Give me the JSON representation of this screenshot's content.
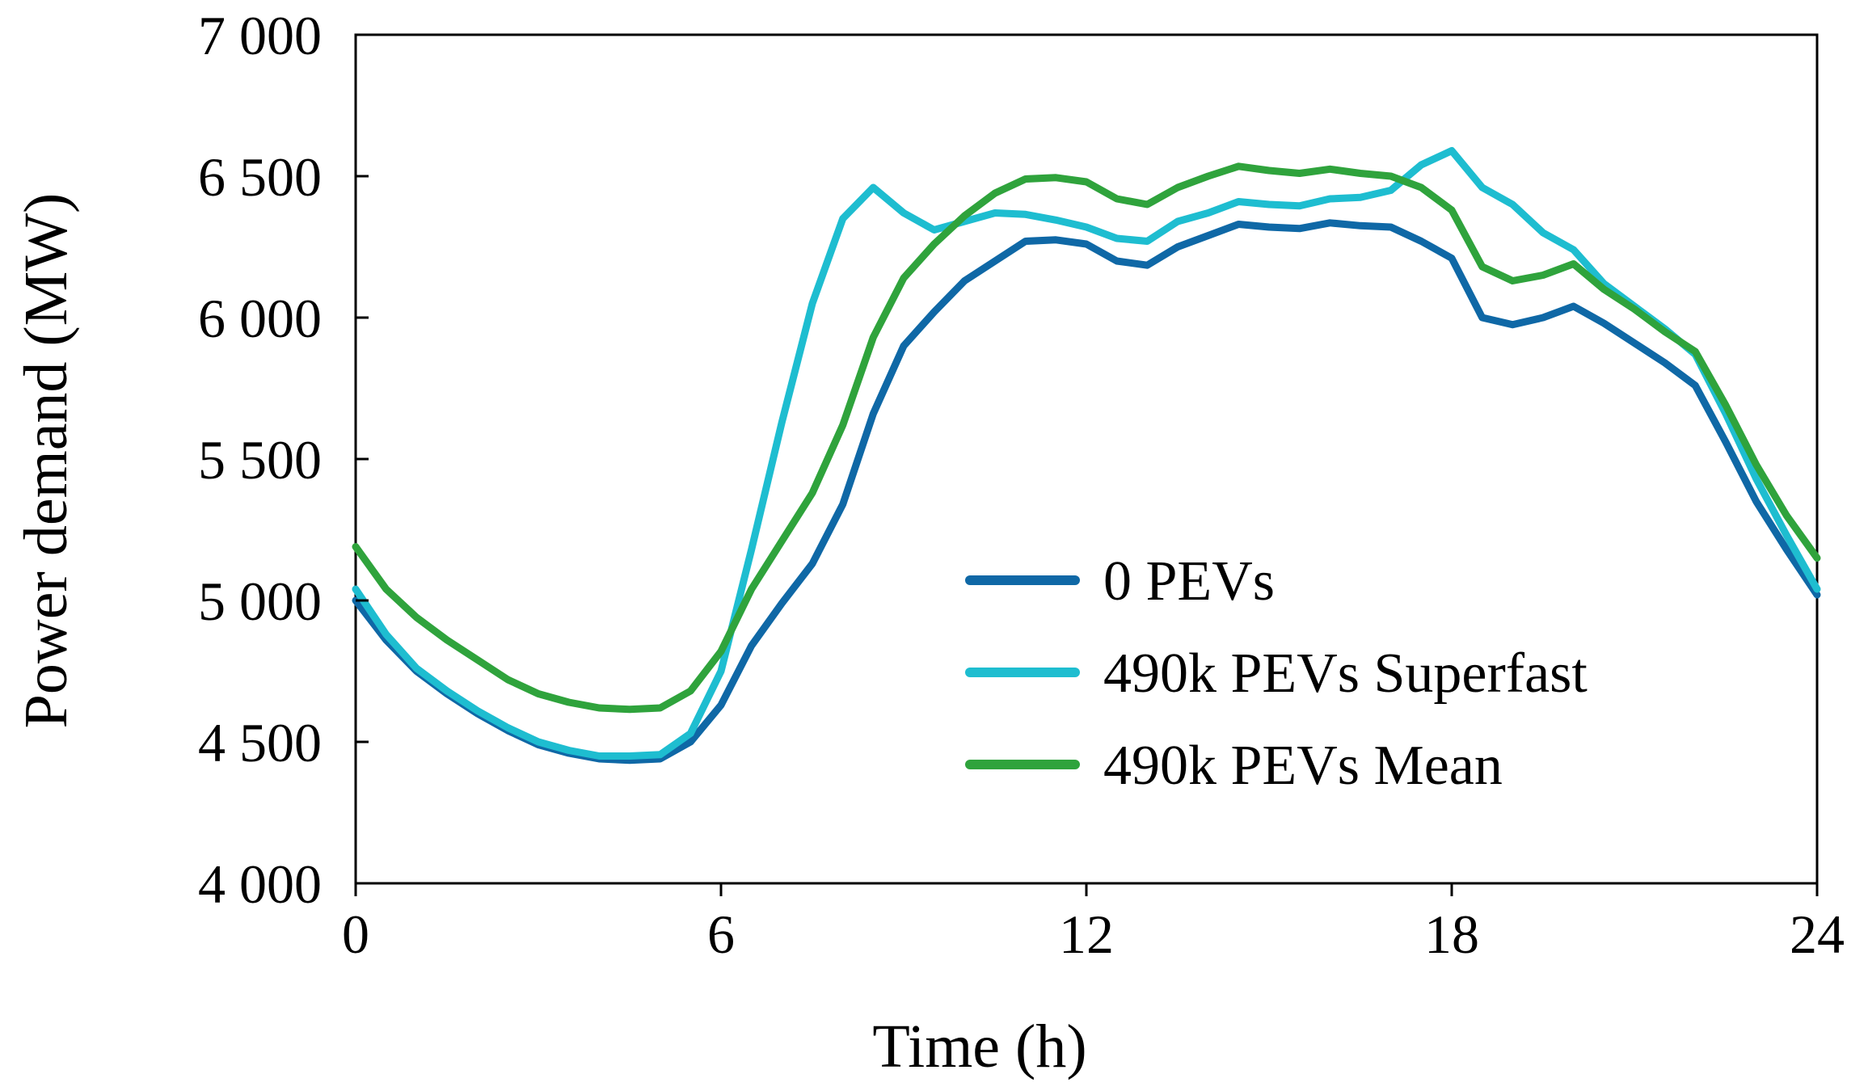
{
  "chart_data": {
    "type": "line",
    "title": "",
    "xlabel": "Time (h)",
    "ylabel": "Power demand (MW)",
    "xlim": [
      0,
      24
    ],
    "ylim": [
      4000,
      7000
    ],
    "xticks": [
      0,
      6,
      12,
      18,
      24
    ],
    "xtick_labels": [
      "0",
      "6",
      "12",
      "18",
      "24"
    ],
    "yticks": [
      4000,
      4500,
      5000,
      5500,
      6000,
      6500,
      7000
    ],
    "ytick_labels": [
      "4 000",
      "4 500",
      "5 000",
      "5 500",
      "6 000",
      "6 500",
      "7 000"
    ],
    "grid": false,
    "legend_position": "lower-right",
    "series": [
      {
        "name": "0 PEVs",
        "color": "#0f68a6",
        "x": [
          0,
          0.5,
          1,
          1.5,
          2,
          2.5,
          3,
          3.5,
          4,
          4.5,
          5,
          5.5,
          6,
          6.5,
          7,
          7.5,
          8,
          8.5,
          9,
          9.5,
          10,
          10.5,
          11,
          11.5,
          12,
          12.5,
          13,
          13.5,
          14,
          14.5,
          15,
          15.5,
          16,
          16.5,
          17,
          17.5,
          18,
          18.5,
          19,
          19.5,
          20,
          20.5,
          21,
          21.5,
          22,
          22.5,
          23,
          23.5,
          24
        ],
        "values": [
          5000,
          4860,
          4750,
          4670,
          4600,
          4540,
          4490,
          4460,
          4440,
          4435,
          4440,
          4500,
          4630,
          4840,
          4990,
          5130,
          5340,
          5660,
          5900,
          6020,
          6130,
          6200,
          6270,
          6275,
          6260,
          6200,
          6185,
          6250,
          6290,
          6330,
          6320,
          6315,
          6335,
          6325,
          6320,
          6270,
          6210,
          6000,
          5975,
          6000,
          6040,
          5980,
          5910,
          5840,
          5760,
          5560,
          5350,
          5180,
          5020
        ]
      },
      {
        "name": "490k PEVs Superfast",
        "color": "#1ebdd0",
        "x": [
          0,
          0.5,
          1,
          1.5,
          2,
          2.5,
          3,
          3.5,
          4,
          4.5,
          5,
          5.5,
          6,
          6.5,
          7,
          7.5,
          8,
          8.5,
          9,
          9.5,
          10,
          10.5,
          11,
          11.5,
          12,
          12.5,
          13,
          13.5,
          14,
          14.5,
          15,
          15.5,
          16,
          16.5,
          17,
          17.5,
          18,
          18.5,
          19,
          19.5,
          20,
          20.5,
          21,
          21.5,
          22,
          22.5,
          23,
          23.5,
          24
        ],
        "values": [
          5040,
          4880,
          4760,
          4680,
          4610,
          4550,
          4500,
          4470,
          4450,
          4450,
          4455,
          4530,
          4750,
          5180,
          5630,
          6050,
          6350,
          6460,
          6370,
          6310,
          6340,
          6370,
          6365,
          6345,
          6320,
          6280,
          6270,
          6340,
          6370,
          6410,
          6400,
          6395,
          6420,
          6425,
          6450,
          6540,
          6590,
          6460,
          6400,
          6300,
          6240,
          6120,
          6040,
          5960,
          5870,
          5660,
          5430,
          5230,
          5040
        ]
      },
      {
        "name": "490k PEVs Mean",
        "color": "#2fa33c",
        "x": [
          0,
          0.5,
          1,
          1.5,
          2,
          2.5,
          3,
          3.5,
          4,
          4.5,
          5,
          5.5,
          6,
          6.5,
          7,
          7.5,
          8,
          8.5,
          9,
          9.5,
          10,
          10.5,
          11,
          11.5,
          12,
          12.5,
          13,
          13.5,
          14,
          14.5,
          15,
          15.5,
          16,
          16.5,
          17,
          17.5,
          18,
          18.5,
          19,
          19.5,
          20,
          20.5,
          21,
          21.5,
          22,
          22.5,
          23,
          23.5,
          24
        ],
        "values": [
          5190,
          5040,
          4940,
          4860,
          4790,
          4720,
          4670,
          4640,
          4620,
          4615,
          4620,
          4680,
          4820,
          5040,
          5210,
          5380,
          5620,
          5930,
          6140,
          6260,
          6360,
          6440,
          6490,
          6495,
          6480,
          6420,
          6400,
          6460,
          6500,
          6535,
          6520,
          6510,
          6525,
          6510,
          6500,
          6460,
          6380,
          6180,
          6130,
          6150,
          6190,
          6100,
          6030,
          5950,
          5880,
          5690,
          5480,
          5300,
          5150
        ]
      }
    ]
  }
}
